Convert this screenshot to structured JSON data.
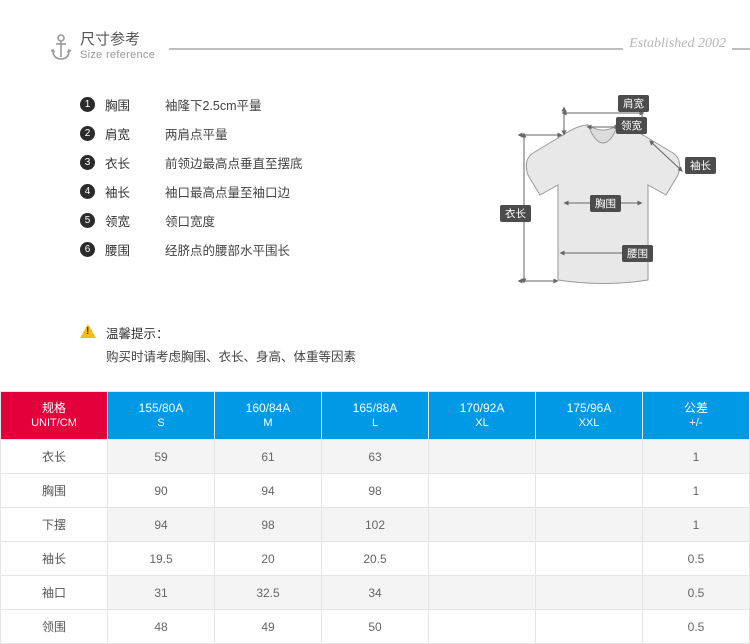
{
  "header": {
    "title_cn": "尺寸参考",
    "title_en": "Size reference",
    "established": "Established 2002",
    "line_color": "#bfbfbf",
    "anchor_color": "#9a9a9a"
  },
  "definitions": [
    {
      "num": "1",
      "term": "胸围",
      "desc": "袖隆下2.5cm平量"
    },
    {
      "num": "2",
      "term": "肩宽",
      "desc": "两肩点平量"
    },
    {
      "num": "3",
      "term": "衣长",
      "desc": "前领边最高点垂直至摆底"
    },
    {
      "num": "4",
      "term": "袖长",
      "desc": "袖口最高点量至袖口边"
    },
    {
      "num": "5",
      "term": "领宽",
      "desc": "领口宽度"
    },
    {
      "num": "6",
      "term": "腰围",
      "desc": "经脐点的腰部水平围长"
    }
  ],
  "tip": {
    "title": "温馨提示：",
    "text": "购买时请考虑胸围、衣长、身高、体重等因素"
  },
  "diagram": {
    "shirt_fill": "#e8e8e8",
    "shirt_stroke": "#9a9a9a",
    "arrow_color": "#666666",
    "label_bg": "#4c4c4c",
    "labels": {
      "shoulder": "肩宽",
      "collar": "领宽",
      "sleeve": "袖长",
      "chest": "胸围",
      "length": "衣长",
      "waist": "腰围"
    }
  },
  "table": {
    "header_spec_bg": "#e4003a",
    "header_size_bg": "#0099e5",
    "row_alt_bg": "#f4f4f4",
    "border_color": "#e5e5e5",
    "spec_header_top": "规格",
    "spec_header_bot": "UNIT/CM",
    "tolerance_header_top": "公差",
    "tolerance_header_bot": "+/-",
    "size_columns": [
      {
        "top": "155/80A",
        "bot": "S"
      },
      {
        "top": "160/84A",
        "bot": "M"
      },
      {
        "top": "165/88A",
        "bot": "L"
      },
      {
        "top": "170/92A",
        "bot": "XL"
      },
      {
        "top": "175/96A",
        "bot": "XXL"
      }
    ],
    "rows": [
      {
        "label": "衣长",
        "values": [
          "59",
          "61",
          "63",
          "",
          ""
        ],
        "tol": "1"
      },
      {
        "label": "胸围",
        "values": [
          "90",
          "94",
          "98",
          "",
          ""
        ],
        "tol": "1"
      },
      {
        "label": "下摆",
        "values": [
          "94",
          "98",
          "102",
          "",
          ""
        ],
        "tol": "1"
      },
      {
        "label": "袖长",
        "values": [
          "19.5",
          "20",
          "20.5",
          "",
          ""
        ],
        "tol": "0.5"
      },
      {
        "label": "袖口",
        "values": [
          "31",
          "32.5",
          "34",
          "",
          ""
        ],
        "tol": "0.5"
      },
      {
        "label": "领围",
        "values": [
          "48",
          "49",
          "50",
          "",
          ""
        ],
        "tol": "0.5"
      }
    ]
  }
}
